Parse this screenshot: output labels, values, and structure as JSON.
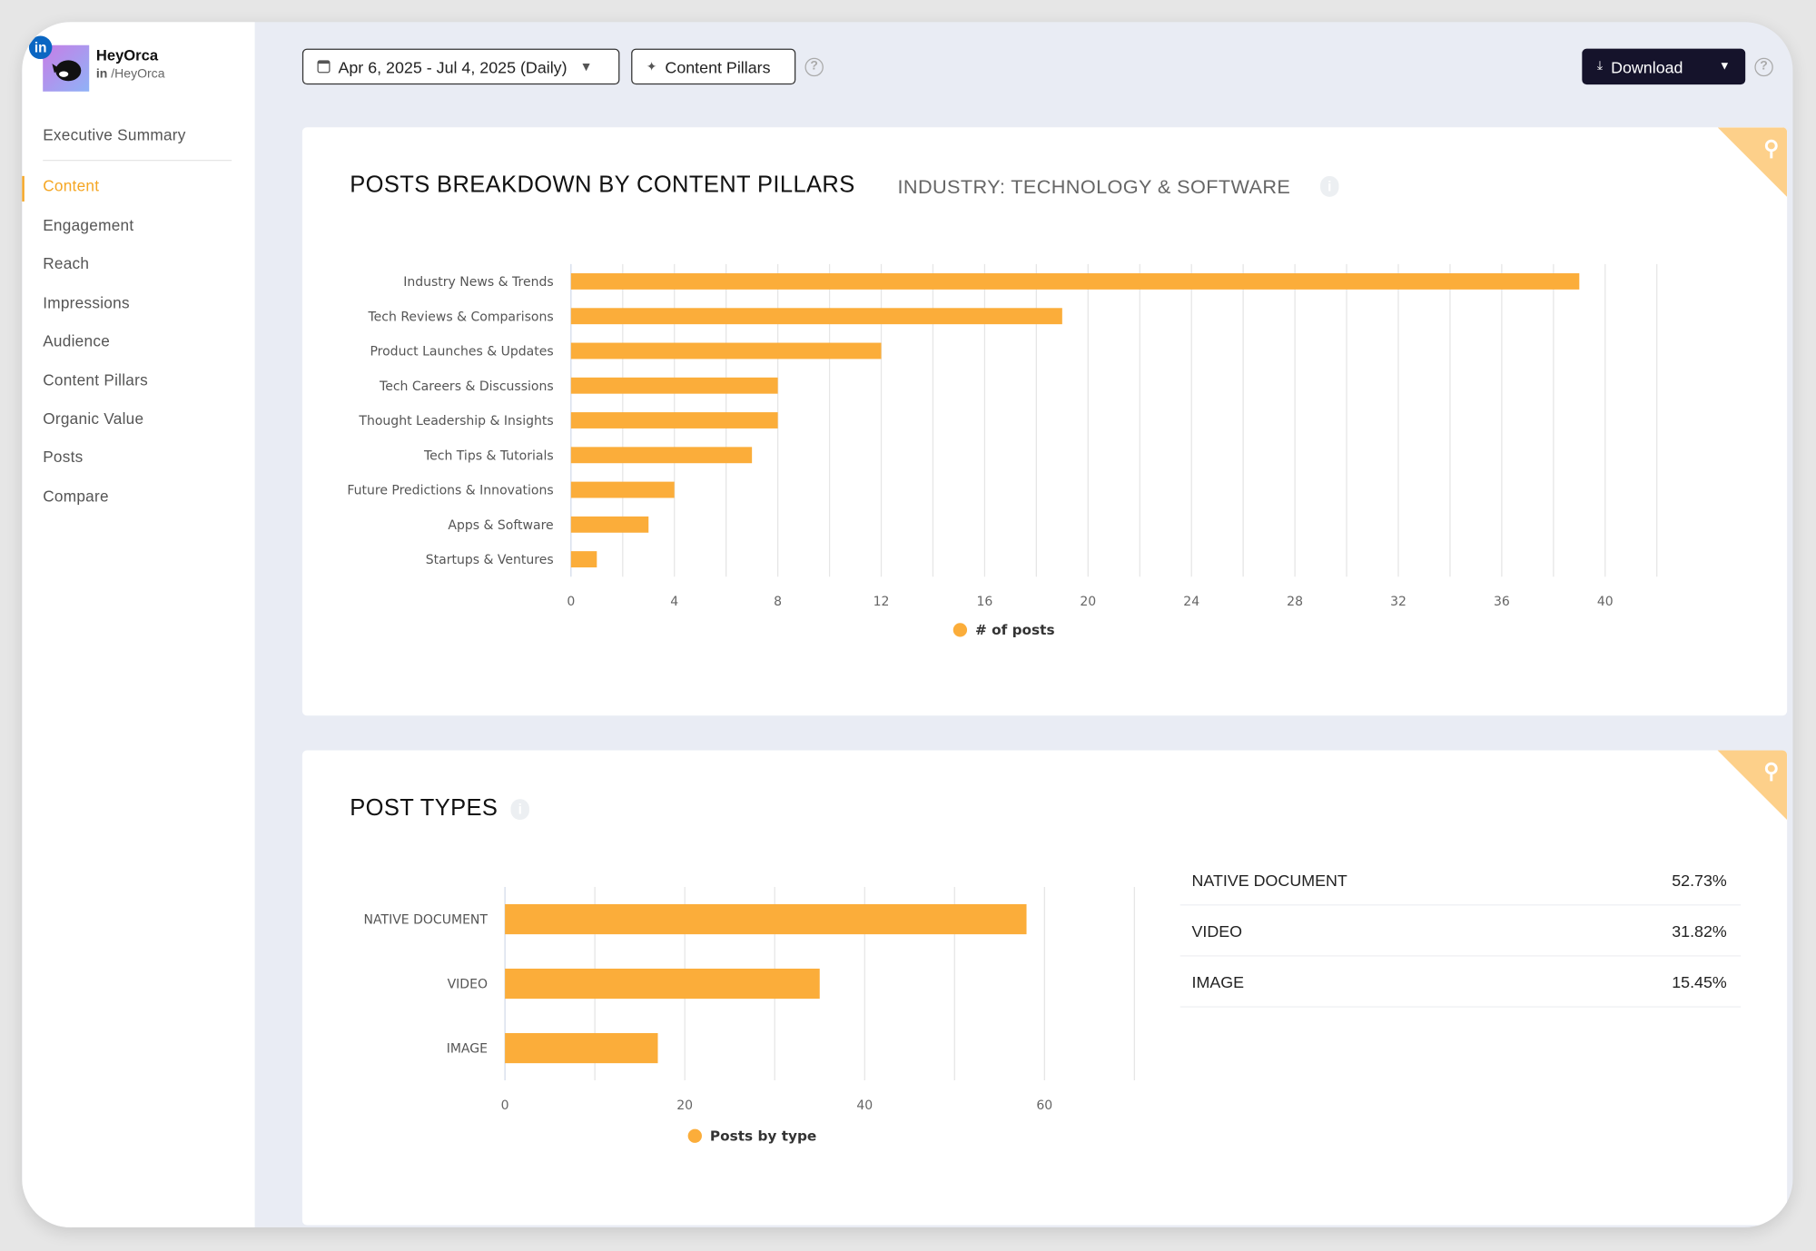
{
  "brand": {
    "name": "HeyOrca",
    "handle": "/HeyOrca",
    "network_icon": "linkedin-icon"
  },
  "sidebar": {
    "items": [
      {
        "label": "Executive Summary"
      },
      {
        "label": "Content",
        "active": true
      },
      {
        "label": "Engagement"
      },
      {
        "label": "Reach"
      },
      {
        "label": "Impressions"
      },
      {
        "label": "Audience"
      },
      {
        "label": "Content Pillars"
      },
      {
        "label": "Organic Value"
      },
      {
        "label": "Posts"
      },
      {
        "label": "Compare"
      }
    ]
  },
  "toolbar": {
    "date_range": "Apr 6, 2025 - Jul 4, 2025 (Daily)",
    "content_pillars": "Content Pillars",
    "download": "Download"
  },
  "colors": {
    "accent": "#f5a623",
    "bar": "#fbad3a",
    "dark_button": "#15132b",
    "main_bg": "#e9ecf4"
  },
  "cards": {
    "pillars": {
      "title": "POSTS BREAKDOWN BY CONTENT PILLARS",
      "subtitle": "INDUSTRY: TECHNOLOGY & SOFTWARE"
    },
    "types": {
      "title": "POST TYPES"
    }
  },
  "types_table": [
    {
      "label": "NATIVE DOCUMENT",
      "value": "52.73%"
    },
    {
      "label": "VIDEO",
      "value": "31.82%"
    },
    {
      "label": "IMAGE",
      "value": "15.45%"
    }
  ],
  "chart_data": [
    {
      "type": "bar",
      "orientation": "horizontal",
      "categories": [
        "Industry News & Trends",
        "Tech Reviews & Comparisons",
        "Product Launches & Updates",
        "Tech Careers & Discussions",
        "Thought Leadership & Insights",
        "Tech Tips & Tutorials",
        "Future Predictions & Innovations",
        "Apps & Software",
        "Startups & Ventures"
      ],
      "series": [
        {
          "name": "# of posts",
          "values": [
            39,
            19,
            12,
            8,
            8,
            7,
            4,
            3,
            1
          ]
        }
      ],
      "xlim": [
        0,
        42
      ],
      "xticks": [
        0,
        4,
        8,
        12,
        16,
        20,
        24,
        28,
        32,
        36,
        40
      ],
      "grid": true,
      "legend": "bottom"
    },
    {
      "type": "bar",
      "orientation": "horizontal",
      "categories": [
        "NATIVE DOCUMENT",
        "VIDEO",
        "IMAGE"
      ],
      "series": [
        {
          "name": "Posts by type",
          "values": [
            58,
            35,
            17
          ]
        }
      ],
      "xlim": [
        0,
        70
      ],
      "xticks": [
        0,
        20,
        40,
        60
      ],
      "grid": true,
      "legend": "bottom"
    }
  ]
}
